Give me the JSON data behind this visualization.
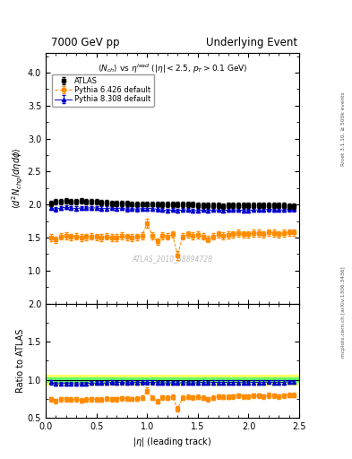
{
  "title_left": "7000 GeV pp",
  "title_right": "Underlying Event",
  "subtitle_text": "$\\langle N_{ch}\\rangle$ vs $\\eta^{lead}$ ($|\\eta| < 2.5$, $p_T > 0.1$ GeV)",
  "ylabel_main": "$\\langle d^2 N_{chg}/d\\eta d\\phi \\rangle$",
  "ylabel_ratio": "Ratio to ATLAS",
  "xlabel": "$|\\eta|$ (leading track)",
  "watermark": "ATLAS_2010_S8894728",
  "rivet_label": "Rivet 3.1.10, ≥ 500k events",
  "mcplots_label": "mcplots.cern.ch [arXiv:1306.3436]",
  "ylim_main": [
    0.5,
    4.3
  ],
  "ylim_ratio": [
    0.5,
    2.0
  ],
  "xlim": [
    0.0,
    2.5
  ],
  "yticks_main": [
    1.0,
    1.5,
    2.0,
    2.5,
    3.0,
    3.5,
    4.0
  ],
  "yticks_ratio": [
    0.5,
    1.0,
    1.5,
    2.0
  ],
  "legend": [
    "ATLAS",
    "Pythia 6.426 default",
    "Pythia 8.308 default"
  ],
  "atlas_color": "#000000",
  "pythia6_color": "#ff8c00",
  "pythia8_color": "#0000cc",
  "band_yellow": "#ffff66",
  "band_green": "#66ff66",
  "atlas_x": [
    0.05,
    0.1,
    0.15,
    0.2,
    0.25,
    0.3,
    0.35,
    0.4,
    0.45,
    0.5,
    0.55,
    0.6,
    0.65,
    0.7,
    0.75,
    0.8,
    0.85,
    0.9,
    0.95,
    1.0,
    1.05,
    1.1,
    1.15,
    1.2,
    1.25,
    1.3,
    1.35,
    1.4,
    1.45,
    1.5,
    1.55,
    1.6,
    1.65,
    1.7,
    1.75,
    1.8,
    1.85,
    1.9,
    1.95,
    2.0,
    2.05,
    2.1,
    2.15,
    2.2,
    2.25,
    2.3,
    2.35,
    2.4,
    2.45
  ],
  "atlas_y": [
    2.02,
    2.04,
    2.05,
    2.06,
    2.05,
    2.05,
    2.06,
    2.05,
    2.04,
    2.04,
    2.03,
    2.03,
    2.02,
    2.02,
    2.02,
    2.02,
    2.01,
    2.01,
    2.01,
    2.01,
    2.01,
    2.01,
    2.0,
    2.0,
    2.0,
    2.0,
    2.0,
    2.0,
    2.0,
    1.99,
    1.99,
    1.99,
    1.99,
    1.99,
    1.98,
    1.99,
    1.99,
    1.99,
    1.99,
    1.99,
    1.99,
    1.99,
    1.99,
    1.99,
    1.99,
    1.99,
    1.99,
    1.98,
    1.98
  ],
  "atlas_yerr": [
    0.04,
    0.04,
    0.04,
    0.04,
    0.04,
    0.04,
    0.04,
    0.04,
    0.04,
    0.04,
    0.04,
    0.04,
    0.04,
    0.04,
    0.04,
    0.04,
    0.04,
    0.04,
    0.04,
    0.04,
    0.04,
    0.04,
    0.04,
    0.04,
    0.04,
    0.04,
    0.04,
    0.04,
    0.04,
    0.04,
    0.04,
    0.04,
    0.04,
    0.04,
    0.04,
    0.04,
    0.04,
    0.04,
    0.04,
    0.04,
    0.04,
    0.04,
    0.04,
    0.04,
    0.04,
    0.04,
    0.04,
    0.04,
    0.04
  ],
  "pythia6_x": [
    0.05,
    0.1,
    0.15,
    0.2,
    0.25,
    0.3,
    0.35,
    0.4,
    0.45,
    0.5,
    0.55,
    0.6,
    0.65,
    0.7,
    0.75,
    0.8,
    0.85,
    0.9,
    0.95,
    1.0,
    1.05,
    1.1,
    1.15,
    1.2,
    1.25,
    1.3,
    1.35,
    1.4,
    1.45,
    1.5,
    1.55,
    1.6,
    1.65,
    1.7,
    1.75,
    1.8,
    1.85,
    1.9,
    1.95,
    2.0,
    2.05,
    2.1,
    2.15,
    2.2,
    2.25,
    2.3,
    2.35,
    2.4,
    2.45
  ],
  "pythia6_y": [
    1.5,
    1.47,
    1.52,
    1.53,
    1.51,
    1.52,
    1.5,
    1.51,
    1.52,
    1.51,
    1.5,
    1.52,
    1.5,
    1.5,
    1.53,
    1.51,
    1.5,
    1.51,
    1.53,
    1.72,
    1.53,
    1.44,
    1.53,
    1.52,
    1.55,
    1.23,
    1.52,
    1.55,
    1.53,
    1.54,
    1.52,
    1.48,
    1.52,
    1.55,
    1.53,
    1.54,
    1.55,
    1.57,
    1.55,
    1.55,
    1.57,
    1.57,
    1.55,
    1.58,
    1.57,
    1.55,
    1.57,
    1.58,
    1.58
  ],
  "pythia6_yerr": [
    0.05,
    0.05,
    0.05,
    0.05,
    0.05,
    0.05,
    0.05,
    0.05,
    0.05,
    0.05,
    0.05,
    0.05,
    0.05,
    0.05,
    0.05,
    0.05,
    0.05,
    0.05,
    0.05,
    0.07,
    0.05,
    0.05,
    0.05,
    0.05,
    0.05,
    0.07,
    0.05,
    0.05,
    0.05,
    0.05,
    0.05,
    0.05,
    0.05,
    0.05,
    0.05,
    0.05,
    0.05,
    0.05,
    0.05,
    0.05,
    0.05,
    0.05,
    0.05,
    0.05,
    0.05,
    0.05,
    0.05,
    0.05,
    0.05
  ],
  "pythia8_x": [
    0.05,
    0.1,
    0.15,
    0.2,
    0.25,
    0.3,
    0.35,
    0.4,
    0.45,
    0.5,
    0.55,
    0.6,
    0.65,
    0.7,
    0.75,
    0.8,
    0.85,
    0.9,
    0.95,
    1.0,
    1.05,
    1.1,
    1.15,
    1.2,
    1.25,
    1.3,
    1.35,
    1.4,
    1.45,
    1.5,
    1.55,
    1.6,
    1.65,
    1.7,
    1.75,
    1.8,
    1.85,
    1.9,
    1.95,
    2.0,
    2.05,
    2.1,
    2.15,
    2.2,
    2.25,
    2.3,
    2.35,
    2.4,
    2.45
  ],
  "pythia8_y": [
    1.95,
    1.93,
    1.95,
    1.96,
    1.95,
    1.94,
    1.95,
    1.95,
    1.95,
    1.95,
    1.94,
    1.94,
    1.95,
    1.94,
    1.95,
    1.93,
    1.94,
    1.93,
    1.94,
    1.94,
    1.94,
    1.93,
    1.92,
    1.91,
    1.92,
    1.91,
    1.92,
    1.92,
    1.91,
    1.91,
    1.92,
    1.91,
    1.92,
    1.92,
    1.91,
    1.92,
    1.92,
    1.92,
    1.91,
    1.91,
    1.92,
    1.92,
    1.92,
    1.93,
    1.92,
    1.92,
    1.92,
    1.93,
    1.93
  ],
  "pythia8_yerr": [
    0.03,
    0.03,
    0.03,
    0.03,
    0.03,
    0.03,
    0.03,
    0.03,
    0.03,
    0.03,
    0.03,
    0.03,
    0.03,
    0.03,
    0.03,
    0.03,
    0.03,
    0.03,
    0.03,
    0.03,
    0.03,
    0.03,
    0.03,
    0.03,
    0.03,
    0.03,
    0.03,
    0.03,
    0.03,
    0.03,
    0.03,
    0.03,
    0.03,
    0.03,
    0.03,
    0.03,
    0.03,
    0.03,
    0.03,
    0.03,
    0.03,
    0.03,
    0.03,
    0.03,
    0.03,
    0.03,
    0.03,
    0.03,
    0.03
  ],
  "atlas_band_lo": 0.97,
  "atlas_band_hi": 1.03,
  "atlas_band_yellow_lo": 0.93,
  "atlas_band_yellow_hi": 1.07
}
